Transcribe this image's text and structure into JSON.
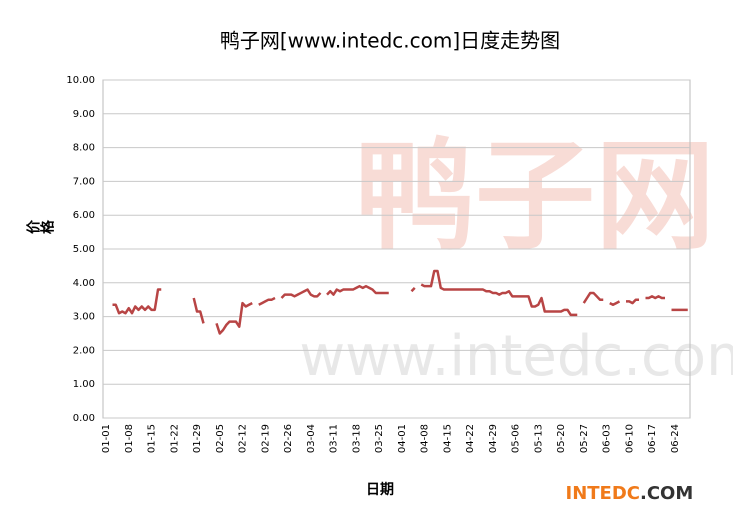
{
  "chart_data": {
    "type": "line",
    "title": "鸭子网[www.intedc.com]日度走势图",
    "y_label": "价格",
    "x_label": "日期",
    "watermark": {
      "cn": "鸭子网",
      "url": "www.intedc.com"
    },
    "logo": {
      "brand": "INTEDC",
      "suffix": ".COM"
    },
    "categories": [
      "01-01",
      null,
      null,
      null,
      null,
      null,
      null,
      "01-08",
      null,
      null,
      null,
      null,
      null,
      null,
      "01-15",
      null,
      null,
      null,
      null,
      null,
      null,
      "01-22",
      null,
      null,
      null,
      null,
      null,
      null,
      "01-29",
      null,
      null,
      null,
      null,
      null,
      null,
      "02-05",
      null,
      null,
      null,
      null,
      null,
      null,
      "02-12",
      null,
      null,
      null,
      null,
      null,
      null,
      "02-19",
      null,
      null,
      null,
      null,
      null,
      null,
      "02-26",
      null,
      null,
      null,
      null,
      null,
      null,
      "03-04",
      null,
      null,
      null,
      null,
      null,
      null,
      "03-11",
      null,
      null,
      null,
      null,
      null,
      null,
      "03-18",
      null,
      null,
      null,
      null,
      null,
      null,
      "03-25",
      null,
      null,
      null,
      null,
      null,
      null,
      "04-01",
      null,
      null,
      null,
      null,
      null,
      null,
      "04-08",
      null,
      null,
      null,
      null,
      null,
      null,
      "04-15",
      null,
      null,
      null,
      null,
      null,
      null,
      "04-22",
      null,
      null,
      null,
      null,
      null,
      null,
      "04-29",
      null,
      null,
      null,
      null,
      null,
      null,
      "05-06",
      null,
      null,
      null,
      null,
      null,
      null,
      "05-13",
      null,
      null,
      null,
      null,
      null,
      null,
      "05-20",
      null,
      null,
      null,
      null,
      null,
      null,
      "05-27",
      null,
      null,
      null,
      null,
      null,
      null,
      "06-03",
      null,
      null,
      null,
      null,
      null,
      null,
      "06-10",
      null,
      null,
      null,
      null,
      null,
      null,
      "06-17",
      null,
      null,
      null,
      null,
      null,
      null,
      "06-24",
      null,
      null,
      null,
      null
    ],
    "series": [
      {
        "color": "#b84545",
        "values": [
          null,
          null,
          3.35,
          3.35,
          3.1,
          3.15,
          3.1,
          3.25,
          3.1,
          3.3,
          3.2,
          3.3,
          3.2,
          3.3,
          3.2,
          3.2,
          3.8,
          3.8,
          null,
          null,
          null,
          null,
          null,
          null,
          null,
          null,
          null,
          3.55,
          3.15,
          3.15,
          2.8,
          null,
          null,
          null,
          2.8,
          2.5,
          2.6,
          2.75,
          2.85,
          2.85,
          2.85,
          2.7,
          3.4,
          3.3,
          3.35,
          3.4,
          null,
          3.35,
          3.4,
          3.45,
          3.5,
          3.5,
          3.55,
          null,
          3.55,
          3.65,
          3.65,
          3.65,
          3.6,
          3.65,
          3.7,
          3.75,
          3.8,
          3.65,
          3.6,
          3.6,
          3.7,
          null,
          3.65,
          3.75,
          3.65,
          3.8,
          3.75,
          3.8,
          3.8,
          3.8,
          3.8,
          3.85,
          3.9,
          3.85,
          3.9,
          3.85,
          3.8,
          3.7,
          3.7,
          3.7,
          3.7,
          3.7,
          null,
          null,
          null,
          null,
          null,
          null,
          3.75,
          3.85,
          null,
          3.95,
          3.9,
          3.9,
          3.9,
          4.35,
          4.35,
          3.85,
          3.8,
          3.8,
          3.8,
          3.8,
          3.8,
          3.8,
          3.8,
          3.8,
          3.8,
          3.8,
          3.8,
          3.8,
          3.8,
          3.75,
          3.75,
          3.7,
          3.7,
          3.65,
          3.7,
          3.7,
          3.75,
          3.6,
          3.6,
          3.6,
          3.6,
          3.6,
          3.6,
          3.3,
          3.3,
          3.35,
          3.55,
          3.15,
          3.15,
          3.15,
          3.15,
          3.15,
          3.15,
          3.2,
          3.2,
          3.05,
          3.05,
          3.05,
          null,
          3.4,
          3.55,
          3.7,
          3.7,
          3.6,
          3.5,
          3.5,
          null,
          3.4,
          3.35,
          3.4,
          3.45,
          null,
          3.45,
          3.45,
          3.4,
          3.5,
          3.5,
          null,
          3.55,
          3.55,
          3.6,
          3.55,
          3.6,
          3.55,
          3.55,
          null,
          3.2,
          3.2,
          3.2,
          3.2,
          3.2,
          3.2
        ]
      }
    ],
    "ylim": [
      0,
      10
    ],
    "yticks": [
      {
        "value": 0,
        "label": "0.00"
      },
      {
        "value": 1,
        "label": "1.00"
      },
      {
        "value": 2,
        "label": "2.00"
      },
      {
        "value": 3,
        "label": "3.00"
      },
      {
        "value": 4,
        "label": "4.00"
      },
      {
        "value": 5,
        "label": "5.00"
      },
      {
        "value": 6,
        "label": "6.00"
      },
      {
        "value": 7,
        "label": "7.00"
      },
      {
        "value": 8,
        "label": "8.00"
      },
      {
        "value": 9,
        "label": "9.00"
      },
      {
        "value": 10,
        "label": "10.00"
      }
    ],
    "grid": true
  }
}
